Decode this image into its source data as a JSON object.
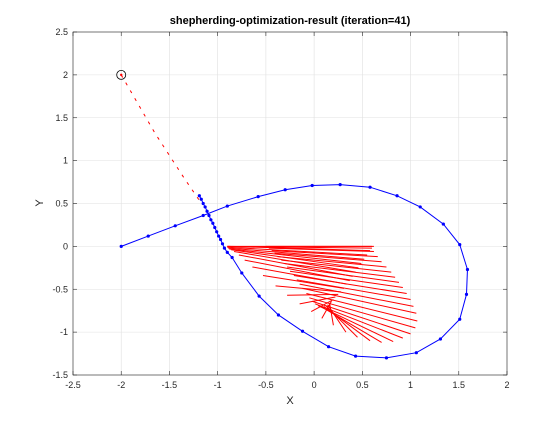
{
  "chart_data": {
    "type": "line",
    "title": "shepherding-optimization-result (iteration=41)",
    "xlabel": "X",
    "ylabel": "Y",
    "xlim": [
      -2.5,
      2
    ],
    "ylim": [
      -1.5,
      2.5
    ],
    "xticks": [
      -2.5,
      -2,
      -1.5,
      -1,
      -0.5,
      0,
      0.5,
      1,
      1.5,
      2
    ],
    "yticks": [
      -1.5,
      -1,
      -0.5,
      0,
      0.5,
      1,
      1.5,
      2,
      2.5
    ],
    "grid": true,
    "colors": {
      "trajectory": "#0000ff",
      "dashed_path": "#ff0000",
      "force_lines": "#ff0000",
      "marker": "#000000",
      "axes": "#262626",
      "grid": "#e0e0e0"
    },
    "series": [
      {
        "style": "blue-line-with-dots",
        "x": [
          -2.0,
          -1.72,
          -1.44,
          -1.15,
          -0.9,
          -0.58,
          -0.3,
          -0.02,
          0.27,
          0.58,
          0.86,
          1.1,
          1.34,
          1.51,
          1.59,
          1.58,
          1.51,
          1.31,
          1.06,
          0.75,
          0.43,
          0.15,
          -0.12,
          -0.37,
          -0.57,
          -0.75,
          -0.85,
          -0.9,
          -0.93,
          -0.95,
          -0.97,
          -0.99,
          -1.01,
          -1.03,
          -1.05,
          -1.07,
          -1.09,
          -1.11,
          -1.13,
          -1.15,
          -1.17,
          -1.19
        ],
        "y": [
          0.0,
          0.12,
          0.24,
          0.36,
          0.47,
          0.58,
          0.66,
          0.71,
          0.72,
          0.69,
          0.59,
          0.46,
          0.26,
          0.02,
          -0.27,
          -0.56,
          -0.85,
          -1.08,
          -1.24,
          -1.3,
          -1.28,
          -1.17,
          -0.99,
          -0.8,
          -0.58,
          -0.31,
          -0.13,
          -0.07,
          -0.02,
          0.03,
          0.08,
          0.12,
          0.17,
          0.22,
          0.27,
          0.31,
          0.36,
          0.41,
          0.46,
          0.5,
          0.55,
          0.59
        ]
      },
      {
        "style": "red-dashed",
        "x": [
          -2.0,
          -1.65,
          -1.35,
          -1.18
        ],
        "y": [
          2.0,
          1.32,
          0.8,
          0.52
        ]
      }
    ],
    "force_lines": [
      {
        "x0": -0.5,
        "y0": 0.0,
        "x1": 0.6,
        "y1": 0.0
      },
      {
        "x0": -0.47,
        "y0": -0.02,
        "x1": 0.62,
        "y1": -0.06
      },
      {
        "x0": -0.44,
        "y0": -0.05,
        "x1": 0.66,
        "y1": -0.12
      },
      {
        "x0": -0.41,
        "y0": -0.08,
        "x1": 0.7,
        "y1": -0.18
      },
      {
        "x0": -0.38,
        "y0": -0.12,
        "x1": 0.75,
        "y1": -0.24
      },
      {
        "x0": -0.34,
        "y0": -0.16,
        "x1": 0.8,
        "y1": -0.3
      },
      {
        "x0": -0.31,
        "y0": -0.2,
        "x1": 0.84,
        "y1": -0.36
      },
      {
        "x0": -0.28,
        "y0": -0.24,
        "x1": 0.88,
        "y1": -0.42
      },
      {
        "x0": -0.25,
        "y0": -0.29,
        "x1": 0.92,
        "y1": -0.48
      },
      {
        "x0": -0.21,
        "y0": -0.34,
        "x1": 0.96,
        "y1": -0.55
      },
      {
        "x0": -0.18,
        "y0": -0.39,
        "x1": 1.0,
        "y1": -0.62
      },
      {
        "x0": -0.15,
        "y0": -0.44,
        "x1": 1.03,
        "y1": -0.7
      },
      {
        "x0": -0.12,
        "y0": -0.49,
        "x1": 1.06,
        "y1": -0.78
      },
      {
        "x0": -0.08,
        "y0": -0.55,
        "x1": 1.07,
        "y1": -0.87
      },
      {
        "x0": -0.05,
        "y0": -0.6,
        "x1": 1.05,
        "y1": -0.95
      },
      {
        "x0": -0.02,
        "y0": -0.64,
        "x1": 1.0,
        "y1": -1.02
      },
      {
        "x0": 0.01,
        "y0": -0.67,
        "x1": 0.92,
        "y1": -1.07
      },
      {
        "x0": 0.04,
        "y0": -0.69,
        "x1": 0.82,
        "y1": -1.11
      },
      {
        "x0": 0.07,
        "y0": -0.7,
        "x1": 0.7,
        "y1": -1.12
      },
      {
        "x0": 0.1,
        "y0": -0.7,
        "x1": 0.58,
        "y1": -1.1
      },
      {
        "x0": 0.12,
        "y0": -0.69,
        "x1": 0.45,
        "y1": -1.06
      },
      {
        "x0": 0.14,
        "y0": -0.68,
        "x1": 0.33,
        "y1": -1.0
      },
      {
        "x0": 0.16,
        "y0": -0.66,
        "x1": 0.2,
        "y1": -0.92
      },
      {
        "x0": 0.18,
        "y0": -0.64,
        "x1": 0.08,
        "y1": -0.84
      },
      {
        "x0": 0.2,
        "y0": -0.62,
        "x1": -0.03,
        "y1": -0.76
      },
      {
        "x0": 0.22,
        "y0": -0.59,
        "x1": -0.15,
        "y1": -0.67
      },
      {
        "x0": 0.25,
        "y0": -0.56,
        "x1": -0.28,
        "y1": -0.57
      },
      {
        "x0": 0.28,
        "y0": -0.53,
        "x1": -0.4,
        "y1": -0.46
      },
      {
        "x0": 0.31,
        "y0": -0.49,
        "x1": -0.53,
        "y1": -0.34
      },
      {
        "x0": 0.34,
        "y0": -0.44,
        "x1": -0.64,
        "y1": -0.24
      },
      {
        "x0": 0.37,
        "y0": -0.4,
        "x1": -0.72,
        "y1": -0.16
      },
      {
        "x0": 0.4,
        "y0": -0.35,
        "x1": -0.78,
        "y1": -0.1
      },
      {
        "x0": 0.43,
        "y0": -0.3,
        "x1": -0.83,
        "y1": -0.06
      },
      {
        "x0": 0.46,
        "y0": -0.25,
        "x1": -0.86,
        "y1": -0.04
      },
      {
        "x0": 0.49,
        "y0": -0.2,
        "x1": -0.88,
        "y1": -0.03
      },
      {
        "x0": 0.52,
        "y0": -0.15,
        "x1": -0.89,
        "y1": -0.02
      },
      {
        "x0": 0.55,
        "y0": -0.1,
        "x1": -0.9,
        "y1": -0.01
      },
      {
        "x0": 0.58,
        "y0": -0.05,
        "x1": -0.9,
        "y1": 0.0
      },
      {
        "x0": 0.6,
        "y0": -0.02,
        "x1": -0.9,
        "y1": 0.0
      },
      {
        "x0": 0.62,
        "y0": 0.0,
        "x1": -0.9,
        "y1": 0.0
      }
    ],
    "marker": {
      "x": -2.0,
      "y": 2.0
    }
  }
}
